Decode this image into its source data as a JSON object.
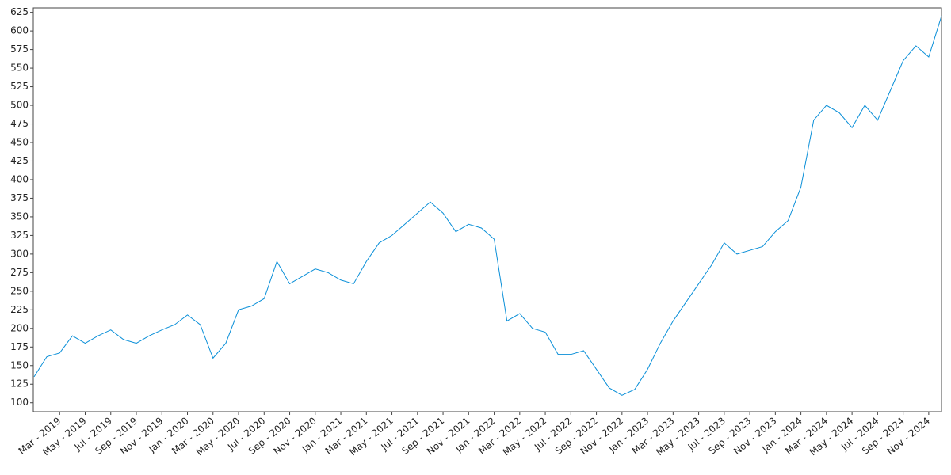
{
  "chart_data": {
    "type": "line",
    "x": [
      "2019-01",
      "2019-02",
      "2019-03",
      "2019-04",
      "2019-05",
      "2019-06",
      "2019-07",
      "2019-08",
      "2019-09",
      "2019-10",
      "2019-11",
      "2019-12",
      "2020-01",
      "2020-02",
      "2020-03",
      "2020-04",
      "2020-05",
      "2020-06",
      "2020-07",
      "2020-08",
      "2020-09",
      "2020-10",
      "2020-11",
      "2020-12",
      "2021-01",
      "2021-02",
      "2021-03",
      "2021-04",
      "2021-05",
      "2021-06",
      "2021-07",
      "2021-08",
      "2021-09",
      "2021-10",
      "2021-11",
      "2021-12",
      "2022-01",
      "2022-02",
      "2022-03",
      "2022-04",
      "2022-05",
      "2022-06",
      "2022-07",
      "2022-08",
      "2022-09",
      "2022-10",
      "2022-11",
      "2022-12",
      "2023-01",
      "2023-02",
      "2023-03",
      "2023-04",
      "2023-05",
      "2023-06",
      "2023-07",
      "2023-08",
      "2023-09",
      "2023-10",
      "2023-11",
      "2023-12",
      "2024-01",
      "2024-02",
      "2024-03",
      "2024-04",
      "2024-05",
      "2024-06",
      "2024-07",
      "2024-08",
      "2024-09",
      "2024-10",
      "2024-11",
      "2024-12"
    ],
    "series": [
      {
        "color": "#0a8fd8",
        "values": [
          135,
          162,
          167,
          190,
          180,
          190,
          198,
          185,
          180,
          190,
          198,
          205,
          218,
          205,
          160,
          180,
          225,
          230,
          240,
          290,
          260,
          270,
          280,
          275,
          265,
          260,
          290,
          315,
          325,
          340,
          355,
          370,
          355,
          330,
          340,
          335,
          320,
          210,
          220,
          200,
          195,
          165,
          165,
          170,
          145,
          120,
          110,
          118,
          145,
          180,
          210,
          235,
          260,
          285,
          315,
          300,
          305,
          310,
          330,
          345,
          390,
          480,
          500,
          490,
          470,
          500,
          480,
          520,
          560,
          580,
          565,
          620
        ]
      }
    ],
    "xlim": [
      "2019-01",
      "2024-12"
    ],
    "xticks": [
      {
        "value": "2019-03",
        "label": "Mar - 2019"
      },
      {
        "value": "2019-05",
        "label": "May - 2019"
      },
      {
        "value": "2019-07",
        "label": "Jul - 2019"
      },
      {
        "value": "2019-09",
        "label": "Sep - 2019"
      },
      {
        "value": "2019-11",
        "label": "Nov - 2019"
      },
      {
        "value": "2020-01",
        "label": "Jan - 2020"
      },
      {
        "value": "2020-03",
        "label": "Mar - 2020"
      },
      {
        "value": "2020-05",
        "label": "May - 2020"
      },
      {
        "value": "2020-07",
        "label": "Jul - 2020"
      },
      {
        "value": "2020-09",
        "label": "Sep - 2020"
      },
      {
        "value": "2020-11",
        "label": "Nov - 2020"
      },
      {
        "value": "2021-01",
        "label": "Jan - 2021"
      },
      {
        "value": "2021-03",
        "label": "Mar - 2021"
      },
      {
        "value": "2021-05",
        "label": "May - 2021"
      },
      {
        "value": "2021-07",
        "label": "Jul - 2021"
      },
      {
        "value": "2021-09",
        "label": "Sep - 2021"
      },
      {
        "value": "2021-11",
        "label": "Nov - 2021"
      },
      {
        "value": "2022-01",
        "label": "Jan - 2022"
      },
      {
        "value": "2022-03",
        "label": "Mar - 2022"
      },
      {
        "value": "2022-05",
        "label": "May - 2022"
      },
      {
        "value": "2022-07",
        "label": "Jul - 2022"
      },
      {
        "value": "2022-09",
        "label": "Sep - 2022"
      },
      {
        "value": "2022-11",
        "label": "Nov - 2022"
      },
      {
        "value": "2023-01",
        "label": "Jan - 2023"
      },
      {
        "value": "2023-03",
        "label": "Mar - 2023"
      },
      {
        "value": "2023-05",
        "label": "May - 2023"
      },
      {
        "value": "2023-07",
        "label": "Jul - 2023"
      },
      {
        "value": "2023-09",
        "label": "Sep - 2023"
      },
      {
        "value": "2023-11",
        "label": "Nov - 2023"
      },
      {
        "value": "2024-01",
        "label": "Jan - 2024"
      },
      {
        "value": "2024-03",
        "label": "Mar - 2024"
      },
      {
        "value": "2024-05",
        "label": "May - 2024"
      },
      {
        "value": "2024-07",
        "label": "Jul - 2024"
      },
      {
        "value": "2024-09",
        "label": "Sep - 2024"
      },
      {
        "value": "2024-11",
        "label": "Nov - 2024"
      }
    ],
    "ylim": [
      88,
      631
    ],
    "yticks": [
      100,
      125,
      150,
      175,
      200,
      225,
      250,
      275,
      300,
      325,
      350,
      375,
      400,
      425,
      450,
      475,
      500,
      525,
      550,
      575,
      600,
      625
    ],
    "grid": false
  }
}
